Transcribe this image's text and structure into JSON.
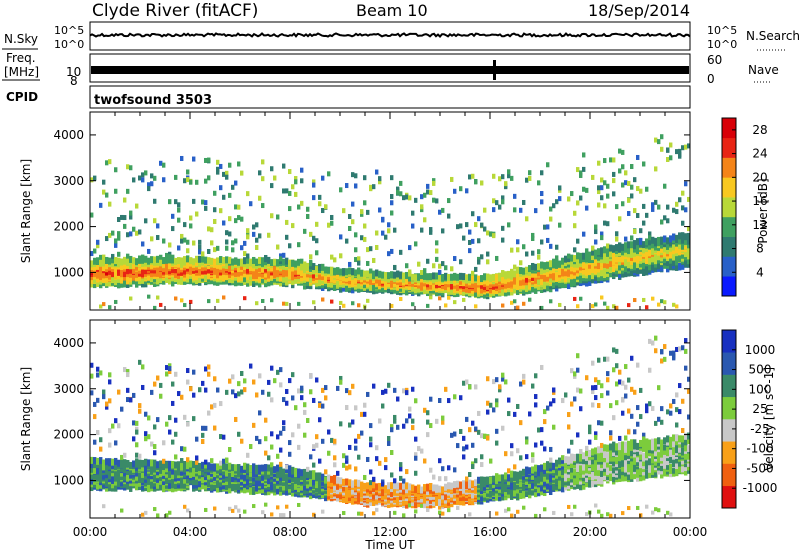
{
  "header": {
    "title": "Clyde River (fitACF)",
    "beam": "Beam 10",
    "date": "18/Sep/2014"
  },
  "noise_panel": {
    "left_label": "N.Sky",
    "right_label": "N.Search",
    "scale_top": "10^5",
    "scale_bottom": "10^0"
  },
  "freq_panel": {
    "left_label_line1": "Freq.",
    "left_label_line2": "[MHz]",
    "left_tick_top": "10",
    "left_tick_bottom": "8",
    "right_label": "Nave",
    "right_tick_top": "60",
    "right_tick_bottom": "0"
  },
  "cpid_panel": {
    "label": "CPID",
    "value": "twofsound 3503"
  },
  "chart_data": [
    {
      "type": "heatmap",
      "panel": "power",
      "ylabel": "Slant Range [km]",
      "xlabel": "Time UT",
      "x_ticks": [
        "00:00",
        "04:00",
        "08:00",
        "12:00",
        "16:00",
        "20:00",
        "00:00"
      ],
      "x_range_hours": [
        0,
        24
      ],
      "y_ticks": [
        1000,
        2000,
        3000,
        4000
      ],
      "ylim": [
        180,
        4500
      ],
      "colorbar": {
        "label": "Power [dB]",
        "ticks": [
          4,
          8,
          12,
          16,
          20,
          24,
          28
        ],
        "range": [
          0,
          30
        ],
        "colors": [
          "#0a1aff",
          "#2860c8",
          "#2f7a70",
          "#3fa060",
          "#b8d838",
          "#f8c820",
          "#f48418",
          "#e82414",
          "#d80008"
        ]
      },
      "main_band": [
        {
          "t": 0,
          "center_km": 1000,
          "width_km": 550,
          "level_db": 26
        },
        {
          "t": 4,
          "center_km": 1050,
          "width_km": 500,
          "level_db": 25
        },
        {
          "t": 8,
          "center_km": 1000,
          "width_km": 500,
          "level_db": 24
        },
        {
          "t": 10,
          "center_km": 850,
          "width_km": 400,
          "level_db": 22
        },
        {
          "t": 13,
          "center_km": 750,
          "width_km": 350,
          "level_db": 24
        },
        {
          "t": 16,
          "center_km": 700,
          "width_km": 400,
          "level_db": 26
        },
        {
          "t": 19,
          "center_km": 1000,
          "width_km": 600,
          "level_db": 22
        },
        {
          "t": 22,
          "center_km": 1350,
          "width_km": 700,
          "level_db": 20
        },
        {
          "t": 24,
          "center_km": 1500,
          "width_km": 700,
          "level_db": 18
        }
      ]
    },
    {
      "type": "heatmap",
      "panel": "velocity",
      "ylabel": "Slant Range [km]",
      "xlabel": "Time UT",
      "x_ticks": [
        "00:00",
        "04:00",
        "08:00",
        "12:00",
        "16:00",
        "20:00",
        "00:00"
      ],
      "x_range_hours": [
        0,
        24
      ],
      "y_ticks": [
        1000,
        2000,
        3000,
        4000
      ],
      "ylim": [
        180,
        4500
      ],
      "colorbar": {
        "label": "Velocity [m s^-1]",
        "ticks": [
          "1000",
          "500",
          "100",
          "25",
          "-25",
          "-100",
          "-500",
          "-1000"
        ],
        "colors": [
          "#1830c0",
          "#2a58b0",
          "#3a8a68",
          "#7ccc3c",
          "#c8c8c8",
          "#f8a018",
          "#f06010",
          "#e01010"
        ]
      },
      "main_band": [
        {
          "t": 0,
          "center_km": 1150,
          "width_km": 600,
          "level": "100"
        },
        {
          "t": 4,
          "center_km": 1100,
          "width_km": 550,
          "level": "100"
        },
        {
          "t": 8,
          "center_km": 1000,
          "width_km": 500,
          "level": "100"
        },
        {
          "t": 11,
          "center_km": 700,
          "width_km": 400,
          "level": "-100"
        },
        {
          "t": 14,
          "center_km": 650,
          "width_km": 400,
          "level": "-100"
        },
        {
          "t": 17,
          "center_km": 900,
          "width_km": 500,
          "level": "100"
        },
        {
          "t": 21,
          "center_km": 1400,
          "width_km": 800,
          "level": "25"
        },
        {
          "t": 24,
          "center_km": 1600,
          "width_km": 800,
          "level": "25"
        }
      ]
    }
  ]
}
